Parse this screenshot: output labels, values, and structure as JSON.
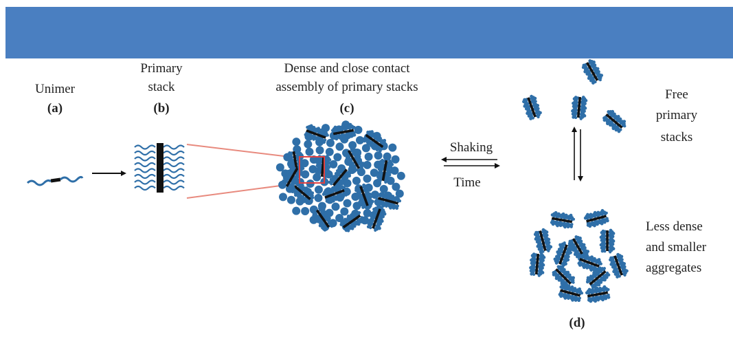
{
  "colors": {
    "banner": "#4a7fc1",
    "polymer": "#2f6fa8",
    "core": "#111111",
    "magnify": "#e88a7e",
    "highlight": "#e04040"
  },
  "labels": {
    "unimer": "Unimer",
    "a": "(a)",
    "primary": "Primary",
    "stack": "stack",
    "b": "(b)",
    "dense_1": "Dense and close contact",
    "dense_2": "assembly of primary stacks",
    "c": "(c)",
    "shaking": "Shaking",
    "time": "Time",
    "free_1": "Free",
    "free_2": "primary",
    "free_3": "stacks",
    "less_1": "Less dense",
    "less_2": "and smaller",
    "less_3": "aggregates",
    "d": "(d)"
  }
}
